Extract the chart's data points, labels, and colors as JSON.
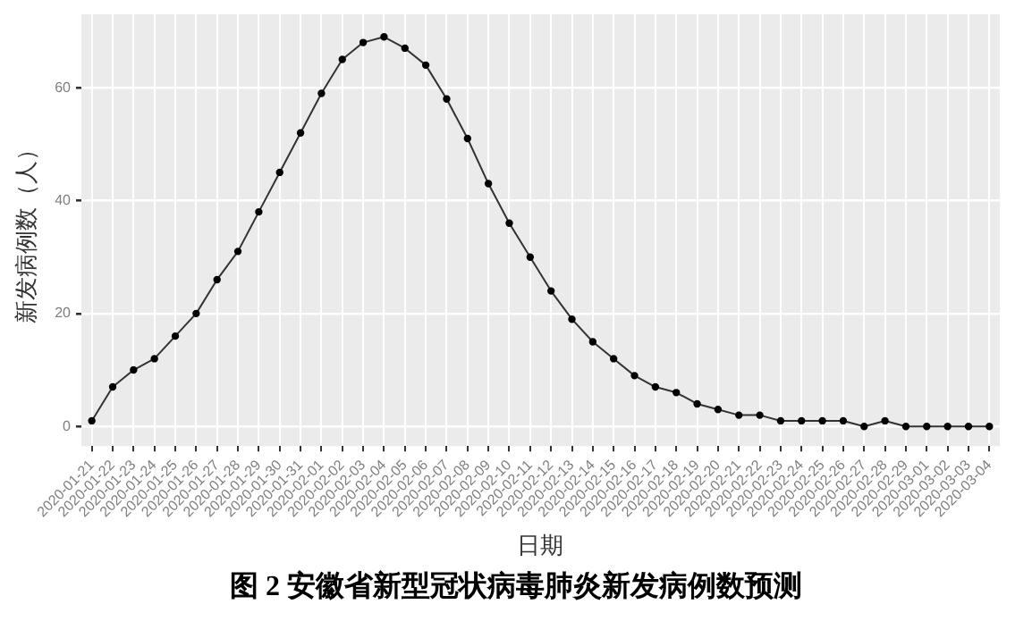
{
  "chart_data": {
    "type": "line",
    "title": "图 2  安徽省新型冠状病毒肺炎新发病例数预测",
    "xlabel": "日期",
    "ylabel": "新发病例数（人）",
    "categories": [
      "2020-01-21",
      "2020-01-22",
      "2020-01-23",
      "2020-01-24",
      "2020-01-25",
      "2020-01-26",
      "2020-01-27",
      "2020-01-28",
      "2020-01-29",
      "2020-01-30",
      "2020-01-31",
      "2020-02-01",
      "2020-02-02",
      "2020-02-03",
      "2020-02-04",
      "2020-02-05",
      "2020-02-06",
      "2020-02-07",
      "2020-02-08",
      "2020-02-09",
      "2020-02-10",
      "2020-02-11",
      "2020-02-12",
      "2020-02-13",
      "2020-02-14",
      "2020-02-15",
      "2020-02-16",
      "2020-02-17",
      "2020-02-18",
      "2020-02-19",
      "2020-02-20",
      "2020-02-21",
      "2020-02-22",
      "2020-02-23",
      "2020-02-24",
      "2020-02-25",
      "2020-02-26",
      "2020-02-27",
      "2020-02-28",
      "2020-02-29",
      "2020-03-01",
      "2020-03-02",
      "2020-03-03",
      "2020-03-04"
    ],
    "series": [
      {
        "color": "#333333",
        "values": [
          1,
          7,
          10,
          12,
          16,
          20,
          26,
          31,
          38,
          45,
          52,
          59,
          65,
          68,
          69,
          67,
          64,
          58,
          51,
          43,
          36,
          30,
          24,
          19,
          15,
          12,
          9,
          7,
          6,
          4,
          3,
          2,
          2,
          1,
          1,
          1,
          1,
          0,
          1,
          0,
          0,
          0,
          0,
          0
        ]
      }
    ],
    "ylim": [
      -3.5,
      73
    ],
    "yticks": [
      0,
      20,
      40,
      60
    ],
    "grid": true,
    "legend": false,
    "marker": "circle",
    "line_style": "solid"
  }
}
